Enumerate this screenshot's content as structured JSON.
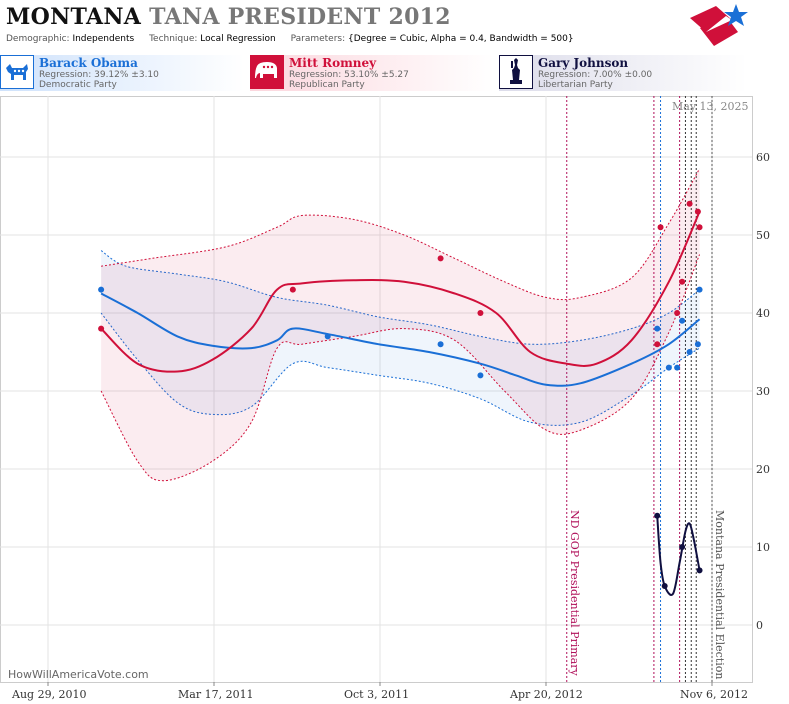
{
  "header": {
    "state": "MONTANA",
    "title_rest": "TANA PRESIDENT 2012",
    "params": [
      {
        "key": "Demographic:",
        "value": "Independents"
      },
      {
        "key": "Technique:",
        "value": "Local Regression"
      },
      {
        "key": "Parameters:",
        "value": "{Degree = Cubic, Alpha = 0.4, Bandwidth = 500}"
      }
    ]
  },
  "candidates": [
    {
      "name": "Barack Obama",
      "regression": "Regression: 39.12% ±3.10",
      "party": "Democratic Party",
      "color": "#1a6fd6",
      "icon": "donkey-icon"
    },
    {
      "name": "Mitt Romney",
      "regression": "Regression: 53.10% ±5.27",
      "party": "Republican Party",
      "color": "#d0103a",
      "icon": "elephant-icon"
    },
    {
      "name": "Gary Johnson",
      "regression": "Regression: 7.00% ±0.00",
      "party": "Libertarian Party",
      "color": "#101040",
      "icon": "liberty-icon"
    }
  ],
  "date_label": "May 13, 2025",
  "watermark": "HowWillAmericaVote.com",
  "chart_data": {
    "type": "line",
    "x_ticks": [
      "Aug 29, 2010",
      "Mar 17, 2011",
      "Oct 3, 2011",
      "Apr 20, 2012",
      "Nov 6, 2012"
    ],
    "y_ticks": [
      0,
      10,
      20,
      30,
      40,
      50,
      60
    ],
    "ylim": [
      -5,
      65
    ],
    "grid": true,
    "series": [
      {
        "name": "Barack Obama",
        "color": "#1a6fd6",
        "points": [
          [
            "2010-11-01",
            43
          ],
          [
            "2011-08-01",
            37
          ],
          [
            "2011-12-15",
            36
          ],
          [
            "2012-02-01",
            32
          ],
          [
            "2012-09-01",
            38
          ],
          [
            "2012-09-15",
            33
          ],
          [
            "2012-09-25",
            33
          ],
          [
            "2012-10-01",
            39
          ],
          [
            "2012-10-10",
            35
          ],
          [
            "2012-10-20",
            36
          ],
          [
            "2012-10-22",
            43
          ]
        ],
        "line": [
          [
            "2010-11-01",
            42.5
          ],
          [
            "2010-12-15",
            40
          ],
          [
            "2011-02-01",
            37
          ],
          [
            "2011-03-15",
            35.8
          ],
          [
            "2011-05-01",
            35.5
          ],
          [
            "2011-06-01",
            36.5
          ],
          [
            "2011-06-20",
            38
          ],
          [
            "2011-08-01",
            37.3
          ],
          [
            "2011-10-01",
            36
          ],
          [
            "2011-12-01",
            35
          ],
          [
            "2012-02-01",
            33.5
          ],
          [
            "2012-03-15",
            32
          ],
          [
            "2012-04-20",
            30.8
          ],
          [
            "2012-06-01",
            31
          ],
          [
            "2012-08-01",
            33.5
          ],
          [
            "2012-09-15",
            36
          ],
          [
            "2012-10-22",
            39.2
          ]
        ],
        "upper": [
          [
            "2010-11-01",
            48
          ],
          [
            "2010-12-01",
            46
          ],
          [
            "2011-02-01",
            45
          ],
          [
            "2011-04-01",
            44
          ],
          [
            "2011-06-01",
            42
          ],
          [
            "2011-08-01",
            41
          ],
          [
            "2011-10-01",
            39.5
          ],
          [
            "2011-12-01",
            38.5
          ],
          [
            "2012-02-01",
            37
          ],
          [
            "2012-04-01",
            36
          ],
          [
            "2012-06-01",
            36.5
          ],
          [
            "2012-08-01",
            38
          ],
          [
            "2012-09-15",
            40
          ],
          [
            "2012-10-22",
            43
          ]
        ],
        "lower": [
          [
            "2010-11-01",
            40
          ],
          [
            "2010-12-15",
            34
          ],
          [
            "2011-02-01",
            28.5
          ],
          [
            "2011-03-15",
            27
          ],
          [
            "2011-05-01",
            28
          ],
          [
            "2011-06-20",
            33.5
          ],
          [
            "2011-08-01",
            33
          ],
          [
            "2011-10-01",
            32
          ],
          [
            "2011-12-01",
            31
          ],
          [
            "2012-02-01",
            29
          ],
          [
            "2012-04-01",
            26
          ],
          [
            "2012-06-01",
            26
          ],
          [
            "2012-08-01",
            29.5
          ],
          [
            "2012-09-15",
            33
          ],
          [
            "2012-10-22",
            35.5
          ]
        ]
      },
      {
        "name": "Mitt Romney",
        "color": "#d0103a",
        "points": [
          [
            "2010-11-01",
            38
          ],
          [
            "2011-06-20",
            43
          ],
          [
            "2011-12-15",
            47
          ],
          [
            "2012-02-01",
            40
          ],
          [
            "2012-09-01",
            36
          ],
          [
            "2012-09-05",
            51
          ],
          [
            "2012-09-25",
            40
          ],
          [
            "2012-10-01",
            44
          ],
          [
            "2012-10-10",
            54
          ],
          [
            "2012-10-20",
            53
          ],
          [
            "2012-10-22",
            51
          ]
        ],
        "line": [
          [
            "2010-11-01",
            38
          ],
          [
            "2010-12-15",
            33.5
          ],
          [
            "2011-02-01",
            32.5
          ],
          [
            "2011-03-15",
            34
          ],
          [
            "2011-05-01",
            38
          ],
          [
            "2011-06-01",
            43
          ],
          [
            "2011-07-01",
            43.8
          ],
          [
            "2011-09-01",
            44.2
          ],
          [
            "2011-11-01",
            44
          ],
          [
            "2012-01-01",
            42.5
          ],
          [
            "2012-02-20",
            40
          ],
          [
            "2012-04-01",
            35
          ],
          [
            "2012-05-15",
            33.5
          ],
          [
            "2012-06-20",
            33.5
          ],
          [
            "2012-08-01",
            36.5
          ],
          [
            "2012-09-15",
            44
          ],
          [
            "2012-10-22",
            53
          ]
        ],
        "upper": [
          [
            "2010-11-01",
            46
          ],
          [
            "2011-01-01",
            47
          ],
          [
            "2011-04-01",
            48.5
          ],
          [
            "2011-06-01",
            51
          ],
          [
            "2011-07-01",
            52.5
          ],
          [
            "2011-09-01",
            52
          ],
          [
            "2011-11-01",
            50
          ],
          [
            "2012-01-01",
            47
          ],
          [
            "2012-03-01",
            44
          ],
          [
            "2012-04-20",
            42
          ],
          [
            "2012-06-01",
            42
          ],
          [
            "2012-08-01",
            44.5
          ],
          [
            "2012-09-15",
            51.5
          ],
          [
            "2012-10-22",
            58.5
          ]
        ],
        "lower": [
          [
            "2010-11-01",
            30
          ],
          [
            "2010-12-15",
            21
          ],
          [
            "2011-01-15",
            18.5
          ],
          [
            "2011-03-15",
            21
          ],
          [
            "2011-05-01",
            26
          ],
          [
            "2011-06-01",
            35.5
          ],
          [
            "2011-07-01",
            36
          ],
          [
            "2011-09-01",
            37
          ],
          [
            "2011-11-01",
            38
          ],
          [
            "2012-01-01",
            36.5
          ],
          [
            "2012-03-01",
            30
          ],
          [
            "2012-04-20",
            25
          ],
          [
            "2012-06-01",
            25
          ],
          [
            "2012-08-01",
            29
          ],
          [
            "2012-09-15",
            37.5
          ],
          [
            "2012-10-22",
            47.5
          ]
        ]
      },
      {
        "name": "Gary Johnson",
        "color": "#101040",
        "points": [
          [
            "2012-09-01",
            14
          ],
          [
            "2012-09-10",
            5
          ],
          [
            "2012-10-01",
            10
          ],
          [
            "2012-10-22",
            7
          ]
        ],
        "line": [
          [
            "2012-09-01",
            14
          ],
          [
            "2012-09-05",
            8
          ],
          [
            "2012-09-10",
            5
          ],
          [
            "2012-09-20",
            4
          ],
          [
            "2012-09-28",
            8
          ],
          [
            "2012-10-05",
            12
          ],
          [
            "2012-10-10",
            13
          ],
          [
            "2012-10-15",
            11
          ],
          [
            "2012-10-22",
            7
          ]
        ]
      }
    ],
    "events": [
      {
        "date": "2012-05-15",
        "label": "ND GOP Presidential Primary",
        "color": "#b0105a"
      },
      {
        "date": "2012-11-06",
        "label": "Montana Presidential Election",
        "color": "#555555"
      }
    ],
    "event_lines_unlabeled": [
      "2012-08-28",
      "2012-09-05",
      "2012-09-28",
      "2012-10-05",
      "2012-10-12",
      "2012-10-18"
    ]
  }
}
